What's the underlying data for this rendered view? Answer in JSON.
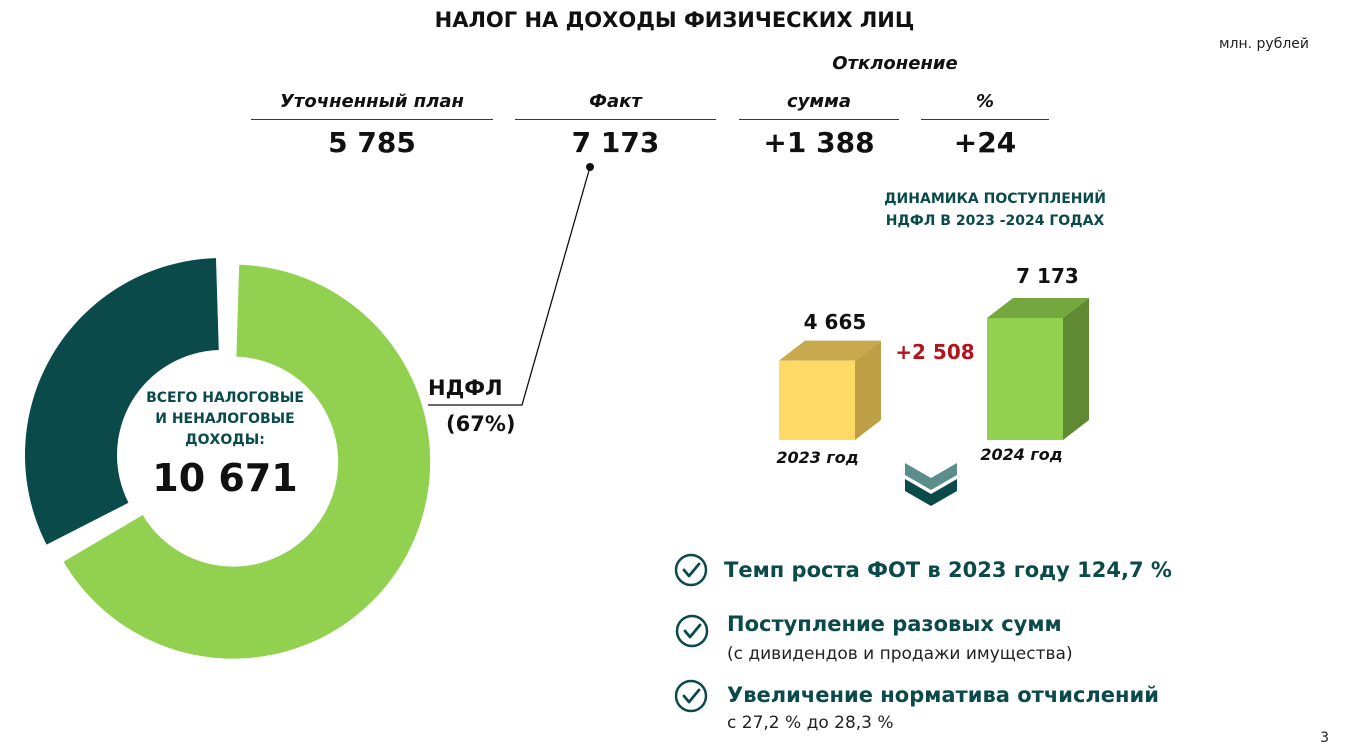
{
  "title": "НАЛОГ НА ДОХОДЫ ФИЗИЧЕСКИХ ЛИЦ",
  "units": "млн. рублей",
  "page_number": "3",
  "table": {
    "deviation_header": "Отклонение",
    "headers": {
      "plan": "Уточненный  план",
      "fact": "Факт",
      "sum": "сумма",
      "percent": "%"
    },
    "values": {
      "plan": "5 785",
      "fact": "7 173",
      "sum": "+1 388",
      "percent": "+24"
    }
  },
  "chart_data": [
    {
      "type": "pie",
      "style": "donut",
      "center_label": "ВСЕГО НАЛОГОВЫЕ И НЕНАЛОГОВЫЕ ДОХОДЫ:",
      "center_label_lines": [
        "ВСЕГО НАЛОГОВЫЕ",
        "И НЕНАЛОГОВЫЕ",
        "ДОХОДЫ:"
      ],
      "total_label": "10 671",
      "total": 10671,
      "slices": [
        {
          "label": "НДФЛ",
          "label_text": "НДФЛ",
          "pct_label": "(67%)",
          "value": 67,
          "color": "#92d050",
          "exploded": true
        },
        {
          "label": "",
          "value": 33,
          "color": "#0b4a4a",
          "exploded": false
        }
      ]
    },
    {
      "type": "bar",
      "style": "3d",
      "title": "ДИНАМИКА ПОСТУПЛЕНИЙ НДФЛ В 2023 -2024 ГОДАХ",
      "title_lines": [
        "ДИНАМИКА ПОСТУПЛЕНИЙ",
        "НДФЛ В 2023 -2024 ГОДАХ"
      ],
      "categories": [
        "2023 год",
        "2024 год"
      ],
      "values": [
        4665,
        7173
      ],
      "value_labels": [
        "4 665",
        "7 173"
      ],
      "colors": [
        "#ffd966",
        "#92d050"
      ],
      "side_colors": [
        "#bf9f45",
        "#5f8a33"
      ],
      "top_colors": [
        "#c9a94d",
        "#74a83f"
      ],
      "difference_label": "+2 508",
      "difference_color": "#b3141c"
    }
  ],
  "facts": [
    {
      "main": "Темп роста ФОТ в 2023 году 124,7 %",
      "sub": ""
    },
    {
      "main": "Поступление разовых сумм",
      "sub": "(с дивидендов и продажи имущества)"
    },
    {
      "main": "Увеличение норматива отчислений",
      "sub": "с 27,2 % до 28,3 %"
    }
  ],
  "icons": {
    "check": "check-circle-icon",
    "chevrons": "chevron-down-double-icon"
  },
  "colors": {
    "accent_dark": "#0a4a4a",
    "accent_green": "#92d050"
  }
}
